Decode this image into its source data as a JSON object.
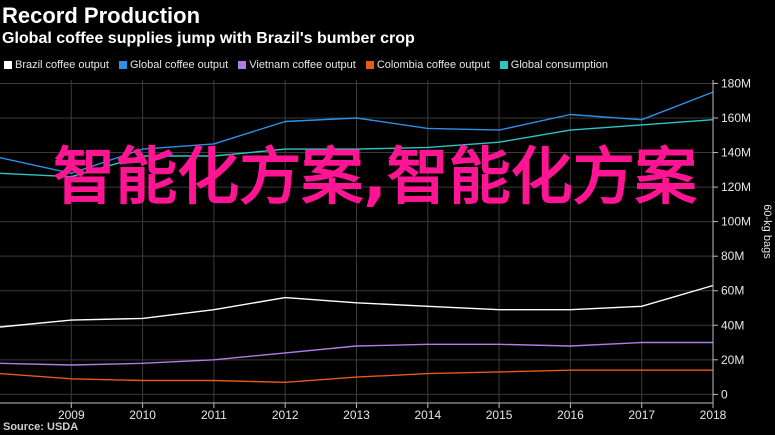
{
  "header": {
    "title": "Record Production",
    "subtitle": "Global coffee supplies jump with Brazil's bumber crop"
  },
  "footer": {
    "source": "Source: USDA"
  },
  "watermark": {
    "text": "智能化方案,智能化方案"
  },
  "chart_data": {
    "type": "line",
    "x": [
      2008,
      2009,
      2010,
      2011,
      2012,
      2013,
      2014,
      2015,
      2016,
      2017,
      2018
    ],
    "xticks": [
      "2009",
      "2010",
      "2011",
      "2012",
      "2013",
      "2014",
      "2015",
      "2016",
      "2017",
      "2018"
    ],
    "xlim": [
      2008,
      2018
    ],
    "ylim": [
      -5,
      182
    ],
    "yticks": [
      0,
      20,
      40,
      60,
      80,
      100,
      120,
      140,
      160,
      180
    ],
    "ytick_labels": [
      "0",
      "20M",
      "40M",
      "60M",
      "80M",
      "100M",
      "120M",
      "140M",
      "160M",
      "180M"
    ],
    "ylabel": "60-kg bags",
    "legend_position": "top-left",
    "grid": true,
    "series": [
      {
        "name": "Brazil coffee output",
        "color": "#ffffff",
        "values": [
          39,
          43,
          44,
          49,
          56,
          53,
          51,
          49,
          49,
          51,
          63
        ]
      },
      {
        "name": "Global coffee output",
        "color": "#2f8fe8",
        "values": [
          137,
          128,
          142,
          145,
          158,
          160,
          154,
          153,
          162,
          159,
          175
        ]
      },
      {
        "name": "Vietnam coffee output",
        "color": "#b07ce8",
        "values": [
          18,
          17,
          18,
          20,
          24,
          28,
          29,
          29,
          28,
          30,
          30
        ]
      },
      {
        "name": "Colombia coffee output",
        "color": "#e8591a",
        "values": [
          12,
          9,
          8,
          8,
          7,
          10,
          12,
          13,
          14,
          14,
          14
        ]
      },
      {
        "name": "Global consumption",
        "color": "#2ec4c4",
        "values": [
          128,
          126,
          138,
          138,
          142,
          142,
          143,
          146,
          153,
          156,
          159
        ]
      }
    ]
  },
  "colors": {
    "background": "#000000",
    "grid": "#3a3a3a",
    "axis": "#bdbdbd",
    "watermark": "#ff1493"
  }
}
